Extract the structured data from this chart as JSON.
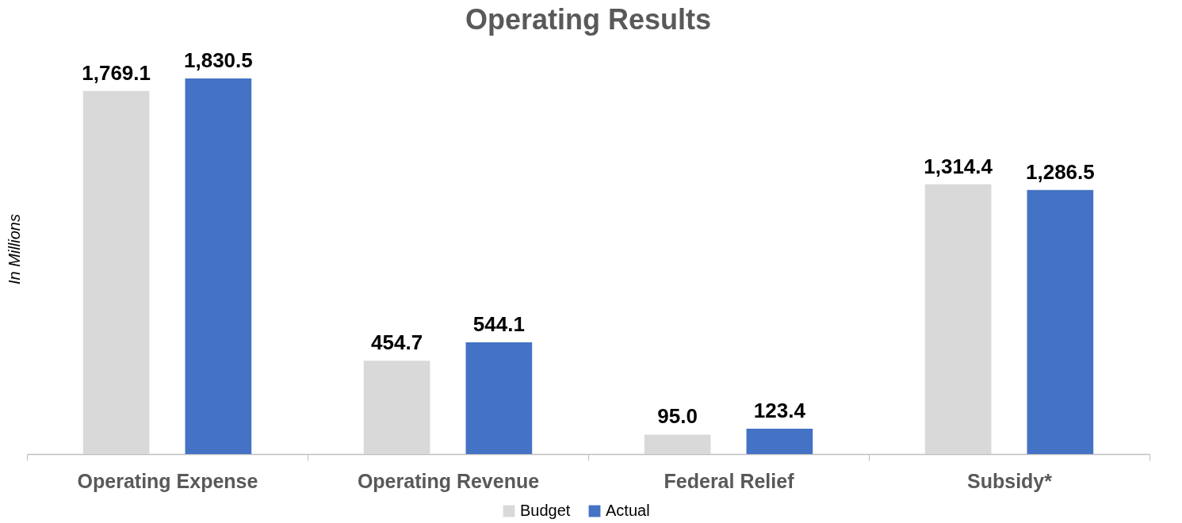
{
  "chart_data": {
    "type": "bar",
    "title": "Operating Results",
    "ylabel": "In Millions",
    "categories": [
      "Operating Expense",
      "Operating Revenue",
      "Federal Relief",
      "Subsidy*"
    ],
    "series": [
      {
        "name": "Budget",
        "color": "#d9d9d9",
        "values": [
          1769.1,
          454.7,
          95.0,
          1314.4
        ],
        "value_labels": [
          "1,769.1",
          "454.7",
          "95.0",
          "1,314.4"
        ]
      },
      {
        "name": "Actual",
        "color": "#4472c4",
        "values": [
          1830.5,
          544.1,
          123.4,
          1286.5
        ],
        "value_labels": [
          "1,830.5",
          "544.1",
          "123.4",
          "1,286.5"
        ]
      }
    ],
    "legend": "bottom",
    "grid": false
  }
}
